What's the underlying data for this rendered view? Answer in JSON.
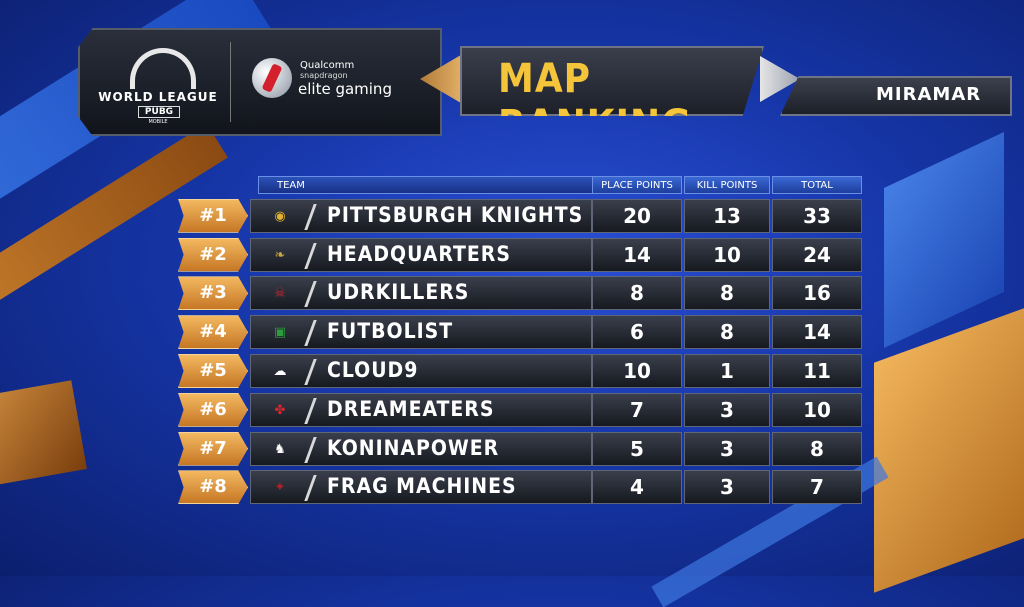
{
  "header": {
    "league_text": "WORLD LEAGUE",
    "pubg_text": "PUBG",
    "mobile_text": "MOBILE",
    "sponsor_brand": "Qualcomm",
    "sponsor_sub": "snapdragon",
    "sponsor_name": "elite gaming",
    "title": "MAP RANKING",
    "map_name": "MIRAMAR"
  },
  "table": {
    "columns": {
      "team": "TEAM",
      "place_points": "PLACE POINTS",
      "kill_points": "KILL POINTS",
      "total": "TOTAL"
    },
    "rows": [
      {
        "rank": "#1",
        "team": "PITTSBURGH KNIGHTS",
        "place": "20",
        "kill": "13",
        "total": "33",
        "icon": "knight-helmet-icon",
        "icon_color": "#e0b12a"
      },
      {
        "rank": "#2",
        "team": "HEADQUARTERS",
        "place": "14",
        "kill": "10",
        "total": "24",
        "icon": "dragon-icon",
        "icon_color": "#c9a640"
      },
      {
        "rank": "#3",
        "team": "UDRKILLERS",
        "place": "8",
        "kill": "8",
        "total": "16",
        "icon": "skull-shield-icon",
        "icon_color": "#c0272d"
      },
      {
        "rank": "#4",
        "team": "FUTBOLIST",
        "place": "6",
        "kill": "8",
        "total": "14",
        "icon": "green-crest-icon",
        "icon_color": "#2e9b3c"
      },
      {
        "rank": "#5",
        "team": "CLOUD9",
        "place": "10",
        "kill": "1",
        "total": "11",
        "icon": "cloud-icon",
        "icon_color": "#ffffff"
      },
      {
        "rank": "#6",
        "team": "DREAMEATERS",
        "place": "7",
        "kill": "3",
        "total": "10",
        "icon": "horns-icon",
        "icon_color": "#d3262e"
      },
      {
        "rank": "#7",
        "team": "KONINAPOWER",
        "place": "5",
        "kill": "3",
        "total": "8",
        "icon": "horse-icon",
        "icon_color": "#ffffff"
      },
      {
        "rank": "#8",
        "team": "FRAG MACHINES",
        "place": "4",
        "kill": "3",
        "total": "7",
        "icon": "frag-machines-icon",
        "icon_color": "#b0202a"
      }
    ]
  }
}
